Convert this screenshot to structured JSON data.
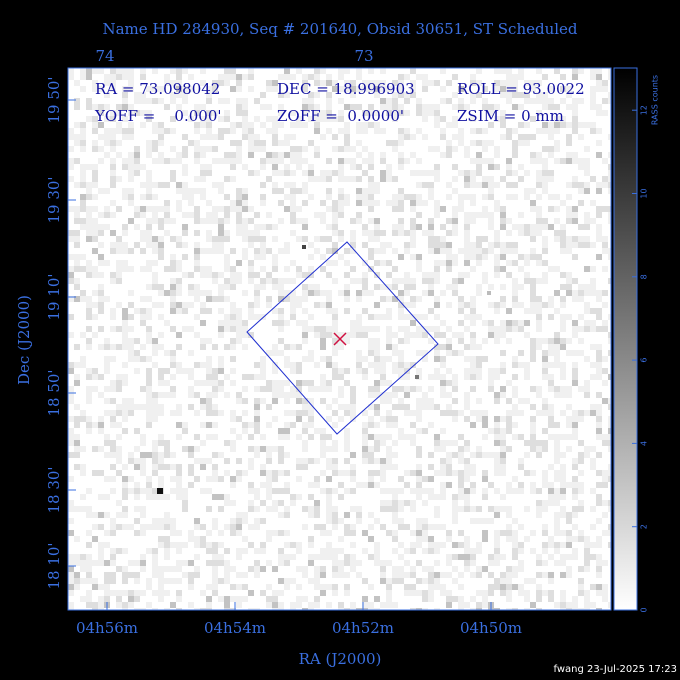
{
  "header": {
    "title": "Name HD 284930, Seq # 201640, Obsid 30651, ST Scheduled"
  },
  "info": {
    "row1": [
      "RA = 73.098042",
      "DEC = 18.996903",
      "ROLL = 93.0022"
    ],
    "row2": [
      "YOFF =    0.000'",
      "ZOFF =  0.0000'",
      "ZSIM = 0 mm"
    ]
  },
  "top_ticks": [
    "74",
    "73"
  ],
  "left_ticks": [
    "19 50'",
    "19 30'",
    "19 10'",
    "18 50'",
    "18 30'",
    "18 10'"
  ],
  "bottom_ticks": [
    "04h56m",
    "04h54m",
    "04h52m",
    "04h50m"
  ],
  "colorbar": {
    "label": "RASS counts",
    "ticks": [
      "0",
      "2",
      "4",
      "6",
      "8",
      "10",
      "12"
    ]
  },
  "x_label": "RA (J2000)",
  "y_label": "Dec (J2000)",
  "footer": "fwang 23-Jul-2025 17:23"
}
